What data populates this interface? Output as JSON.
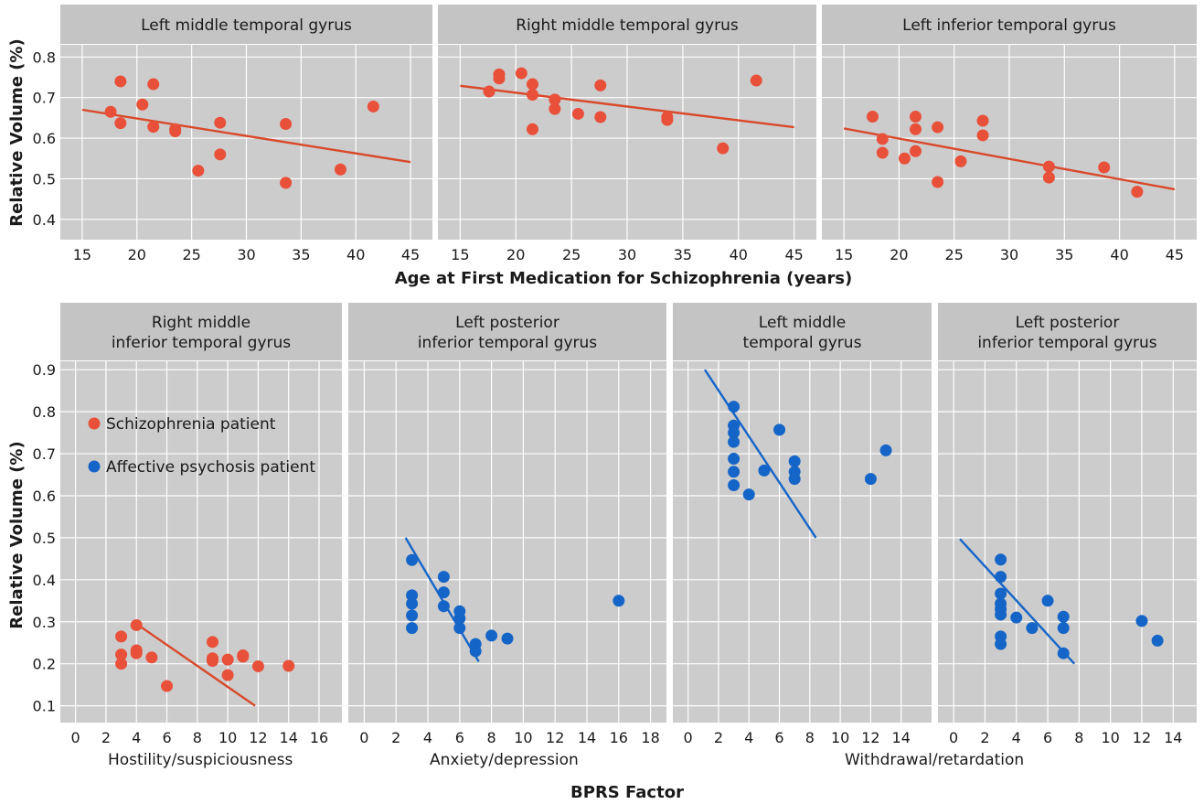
{
  "colors": {
    "panel_bg": "#cccccc",
    "strip_bg": "#c4c4c4",
    "grid": "#ffffff",
    "schizophrenia": "#e8503a",
    "schizophrenia_line": "#d9492b",
    "affective": "#1565c8",
    "affective_line": "#1565c8"
  },
  "figure": {
    "top_xlabel": "Age at First Medication for Schizophrenia (years)",
    "top_ylabel": "Relative Volume (%)",
    "bottom_xlabel": "BPRS Factor",
    "bottom_ylabel": "Relative Volume (%)",
    "legend": [
      {
        "label": "Schizophrenia patient",
        "color": "#e8503a"
      },
      {
        "label": "Affective psychosis patient",
        "color": "#1565c8"
      }
    ]
  },
  "chart_data": [
    {
      "type": "scatter",
      "title": "Left middle temporal gyrus",
      "xlim": [
        13,
        47
      ],
      "ylim": [
        0.35,
        0.83
      ],
      "xticks": [
        15,
        20,
        25,
        30,
        35,
        40,
        45
      ],
      "yticks": [
        0.4,
        0.5,
        0.6,
        0.7,
        0.8
      ],
      "series": [
        {
          "group": "schizophrenia",
          "points": [
            [
              17.6,
              0.665
            ],
            [
              18.5,
              0.74
            ],
            [
              18.5,
              0.637
            ],
            [
              20.5,
              0.683
            ],
            [
              21.5,
              0.733
            ],
            [
              21.5,
              0.628
            ],
            [
              23.5,
              0.622
            ],
            [
              23.5,
              0.617
            ],
            [
              25.6,
              0.52
            ],
            [
              27.6,
              0.638
            ],
            [
              27.6,
              0.56
            ],
            [
              33.6,
              0.635
            ],
            [
              33.6,
              0.49
            ],
            [
              38.6,
              0.523
            ],
            [
              41.6,
              0.678
            ]
          ]
        }
      ],
      "fit": {
        "group": "schizophrenia",
        "x": [
          15,
          45
        ],
        "y": [
          0.67,
          0.541
        ]
      }
    },
    {
      "type": "scatter",
      "title": "Right middle temporal gyrus",
      "xlim": [
        13,
        47
      ],
      "ylim": [
        0.35,
        0.83
      ],
      "xticks": [
        15,
        20,
        25,
        30,
        35,
        40,
        45
      ],
      "yticks": [
        0.4,
        0.5,
        0.6,
        0.7,
        0.8
      ],
      "series": [
        {
          "group": "schizophrenia",
          "points": [
            [
              17.6,
              0.715
            ],
            [
              18.5,
              0.757
            ],
            [
              18.5,
              0.747
            ],
            [
              20.5,
              0.76
            ],
            [
              21.5,
              0.733
            ],
            [
              21.5,
              0.707
            ],
            [
              21.5,
              0.622
            ],
            [
              23.5,
              0.695
            ],
            [
              23.5,
              0.672
            ],
            [
              25.6,
              0.66
            ],
            [
              27.6,
              0.73
            ],
            [
              27.6,
              0.652
            ],
            [
              33.6,
              0.652
            ],
            [
              33.6,
              0.645
            ],
            [
              38.6,
              0.575
            ],
            [
              41.6,
              0.742
            ]
          ]
        }
      ],
      "fit": {
        "group": "schizophrenia",
        "x": [
          15,
          45
        ],
        "y": [
          0.729,
          0.627
        ]
      }
    },
    {
      "type": "scatter",
      "title": "Left inferior temporal gyrus",
      "xlim": [
        13,
        47
      ],
      "ylim": [
        0.35,
        0.83
      ],
      "xticks": [
        15,
        20,
        25,
        30,
        35,
        40,
        45
      ],
      "yticks": [
        0.4,
        0.5,
        0.6,
        0.7,
        0.8
      ],
      "series": [
        {
          "group": "schizophrenia",
          "points": [
            [
              17.6,
              0.653
            ],
            [
              18.5,
              0.598
            ],
            [
              18.5,
              0.564
            ],
            [
              20.5,
              0.55
            ],
            [
              21.5,
              0.653
            ],
            [
              21.5,
              0.622
            ],
            [
              21.5,
              0.568
            ],
            [
              23.5,
              0.627
            ],
            [
              23.5,
              0.492
            ],
            [
              25.6,
              0.543
            ],
            [
              27.6,
              0.643
            ],
            [
              27.6,
              0.607
            ],
            [
              33.6,
              0.53
            ],
            [
              33.6,
              0.503
            ],
            [
              38.6,
              0.528
            ],
            [
              41.6,
              0.468
            ]
          ]
        }
      ],
      "fit": {
        "group": "schizophrenia",
        "x": [
          15,
          45
        ],
        "y": [
          0.624,
          0.474
        ]
      }
    },
    {
      "type": "scatter",
      "title": "Right middle\ninferior temporal gyrus",
      "xlabel": "Hostility/suspiciousness",
      "xlim": [
        -1,
        17.5
      ],
      "ylim": [
        0.06,
        0.92
      ],
      "xticks": [
        0,
        2,
        4,
        6,
        8,
        10,
        12,
        14,
        16
      ],
      "yticks": [
        0.1,
        0.2,
        0.3,
        0.4,
        0.5,
        0.6,
        0.7,
        0.8,
        0.9
      ],
      "legend": true,
      "series": [
        {
          "group": "schizophrenia",
          "points": [
            [
              3,
              0.265
            ],
            [
              3,
              0.222
            ],
            [
              3,
              0.2
            ],
            [
              4,
              0.292
            ],
            [
              4,
              0.232
            ],
            [
              4,
              0.225
            ],
            [
              5,
              0.215
            ],
            [
              6,
              0.147
            ],
            [
              9,
              0.252
            ],
            [
              9,
              0.213
            ],
            [
              9,
              0.207
            ],
            [
              10,
              0.21
            ],
            [
              10,
              0.173
            ],
            [
              11,
              0.22
            ],
            [
              11,
              0.217
            ],
            [
              12,
              0.194
            ],
            [
              14,
              0.195
            ]
          ]
        }
      ],
      "fit": {
        "group": "schizophrenia",
        "x": [
          4,
          11.8
        ],
        "y": [
          0.295,
          0.1
        ]
      }
    },
    {
      "type": "scatter",
      "title": "Left posterior\ninferior temporal gyrus",
      "xlabel": "Anxiety/depression",
      "xlim": [
        -1,
        19
      ],
      "ylim": [
        0.06,
        0.92
      ],
      "xticks": [
        0,
        2,
        4,
        6,
        8,
        10,
        12,
        14,
        16,
        18
      ],
      "yticks": [
        0.1,
        0.2,
        0.3,
        0.4,
        0.5,
        0.6,
        0.7,
        0.8,
        0.9
      ],
      "series": [
        {
          "group": "affective",
          "points": [
            [
              3,
              0.447
            ],
            [
              3,
              0.363
            ],
            [
              3,
              0.343
            ],
            [
              3,
              0.315
            ],
            [
              3,
              0.285
            ],
            [
              5,
              0.407
            ],
            [
              5,
              0.37
            ],
            [
              5,
              0.337
            ],
            [
              6,
              0.325
            ],
            [
              6,
              0.308
            ],
            [
              6,
              0.285
            ],
            [
              7,
              0.247
            ],
            [
              7,
              0.23
            ],
            [
              8,
              0.267
            ],
            [
              9,
              0.26
            ],
            [
              16,
              0.35
            ]
          ]
        }
      ],
      "fit": {
        "group": "affective",
        "x": [
          2.6,
          7.2
        ],
        "y": [
          0.5,
          0.205
        ]
      }
    },
    {
      "type": "scatter",
      "title": "Left middle\ntemporal gyrus",
      "xlabel": "Withdrawal/retardation",
      "xlim": [
        -1,
        16
      ],
      "ylim": [
        0.06,
        0.92
      ],
      "xticks": [
        0,
        2,
        4,
        6,
        8,
        10,
        12,
        14
      ],
      "yticks": [
        0.1,
        0.2,
        0.3,
        0.4,
        0.5,
        0.6,
        0.7,
        0.8,
        0.9
      ],
      "series": [
        {
          "group": "affective",
          "points": [
            [
              3,
              0.812
            ],
            [
              3,
              0.767
            ],
            [
              3,
              0.75
            ],
            [
              3,
              0.728
            ],
            [
              3,
              0.688
            ],
            [
              3,
              0.657
            ],
            [
              3,
              0.625
            ],
            [
              4,
              0.603
            ],
            [
              5,
              0.66
            ],
            [
              6,
              0.757
            ],
            [
              7,
              0.682
            ],
            [
              7,
              0.657
            ],
            [
              7,
              0.64
            ],
            [
              12,
              0.64
            ],
            [
              13,
              0.708
            ]
          ]
        }
      ],
      "fit": {
        "group": "affective",
        "x": [
          1.1,
          8.4
        ],
        "y": [
          0.9,
          0.5
        ]
      }
    },
    {
      "type": "scatter",
      "title": "Left posterior\ninferior temporal gyrus",
      "xlabel": "",
      "xlim": [
        -1,
        15.5
      ],
      "ylim": [
        0.06,
        0.92
      ],
      "xticks": [
        0,
        2,
        4,
        6,
        8,
        10,
        12,
        14
      ],
      "yticks": [
        0.1,
        0.2,
        0.3,
        0.4,
        0.5,
        0.6,
        0.7,
        0.8,
        0.9
      ],
      "series": [
        {
          "group": "affective",
          "points": [
            [
              3,
              0.448
            ],
            [
              3,
              0.407
            ],
            [
              3,
              0.367
            ],
            [
              3,
              0.343
            ],
            [
              3,
              0.33
            ],
            [
              3,
              0.317
            ],
            [
              3,
              0.265
            ],
            [
              3,
              0.247
            ],
            [
              4,
              0.31
            ],
            [
              5,
              0.285
            ],
            [
              6,
              0.35
            ],
            [
              7,
              0.312
            ],
            [
              7,
              0.285
            ],
            [
              7,
              0.225
            ],
            [
              12,
              0.302
            ],
            [
              13,
              0.255
            ]
          ]
        }
      ],
      "fit": {
        "group": "affective",
        "x": [
          0.4,
          7.7
        ],
        "y": [
          0.497,
          0.2
        ]
      }
    }
  ]
}
